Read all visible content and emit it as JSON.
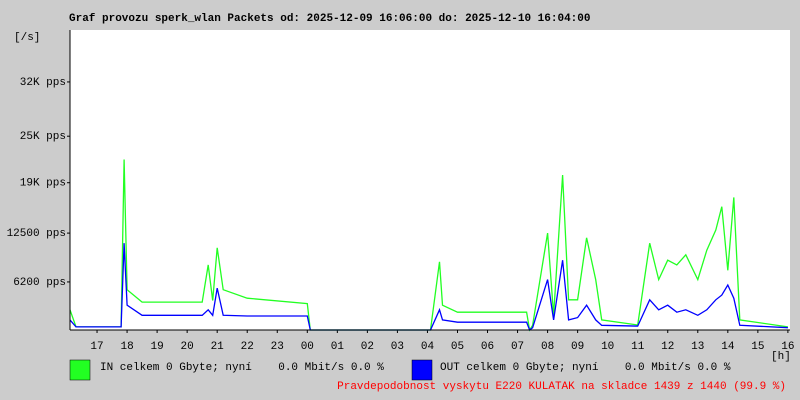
{
  "chart_data": {
    "type": "line",
    "title": "Graf provozu sperk_wlan Packets od: 2025-12-09 16:06:00 do: 2025-12-10 16:04:00",
    "y_unit_label": "[/s]",
    "x_unit_label": "[h]",
    "x": [
      16.1,
      16.3,
      17.8,
      17.9,
      18.0,
      18.5,
      20.5,
      20.7,
      20.85,
      21.0,
      21.2,
      22.0,
      24.0,
      24.1,
      28.1,
      28.4,
      28.5,
      29.0,
      31.3,
      31.4,
      31.5,
      32.0,
      32.2,
      32.5,
      32.7,
      33.0,
      33.3,
      33.6,
      33.8,
      35.0,
      35.4,
      35.7,
      36.0,
      36.3,
      36.6,
      37.0,
      37.3,
      37.6,
      37.8,
      38.0,
      38.2,
      38.4,
      40.0
    ],
    "series": [
      {
        "name": "IN celkem 0 Gbyte; nyní    0.0 Mbit/s 0.0 %",
        "color": "#22ff22",
        "values": [
          2600,
          400,
          400,
          22000,
          5200,
          3600,
          3600,
          8400,
          3800,
          10600,
          5200,
          4100,
          3400,
          0,
          0,
          8800,
          3200,
          2300,
          2300,
          0,
          600,
          12500,
          1900,
          20000,
          3900,
          3900,
          11900,
          6500,
          1300,
          650,
          11200,
          6500,
          9000,
          8400,
          9700,
          6500,
          10300,
          12900,
          15900,
          7700,
          17100,
          1300,
          400
        ]
      },
      {
        "name": "OUT celkem 0 Gbyte; nyní    0.0 Mbit/s 0.0 %",
        "color": "#0000ff",
        "values": [
          1300,
          400,
          400,
          11200,
          3200,
          1900,
          1900,
          2600,
          1900,
          5400,
          1900,
          1800,
          1800,
          0,
          0,
          2600,
          1300,
          1000,
          1000,
          0,
          300,
          6500,
          1300,
          9000,
          1300,
          1600,
          3200,
          1300,
          600,
          500,
          3900,
          2600,
          3200,
          2300,
          2600,
          1900,
          2600,
          3900,
          4500,
          5800,
          4100,
          600,
          300
        ]
      }
    ],
    "xlim": [
      16.1,
      40.07
    ],
    "xticks": [
      17,
      18,
      19,
      20,
      21,
      22,
      23,
      {
        "value": 24,
        "label": "00"
      },
      {
        "value": 25,
        "label": "01"
      },
      {
        "value": 26,
        "label": "02"
      },
      {
        "value": 27,
        "label": "03"
      },
      {
        "value": 28,
        "label": "04"
      },
      {
        "value": 29,
        "label": "05"
      },
      {
        "value": 30,
        "label": "06"
      },
      {
        "value": 31,
        "label": "07"
      },
      {
        "value": 32,
        "label": "08"
      },
      {
        "value": 33,
        "label": "09"
      },
      {
        "value": 34,
        "label": "10"
      },
      {
        "value": 35,
        "label": "11"
      },
      {
        "value": 36,
        "label": "12"
      },
      {
        "value": 37,
        "label": "13"
      },
      {
        "value": 38,
        "label": "14"
      },
      {
        "value": 39,
        "label": "15"
      },
      {
        "value": 40,
        "label": "16"
      }
    ],
    "ylim": [
      0,
      38700
    ],
    "yticks": [
      {
        "value": 6200,
        "label": "6200 pps"
      },
      {
        "value": 12500,
        "label": "12500 pps"
      },
      {
        "value": 19000,
        "label": "19K pps"
      },
      {
        "value": 25000,
        "label": "25K pps"
      },
      {
        "value": 32000,
        "label": "32K pps"
      }
    ],
    "grid": false,
    "footer": "Pravdepodobnost vyskytu E220 KULATAK na skladce 1439 z 1440 (99.9 %)",
    "footer_color": "#ff0000"
  }
}
